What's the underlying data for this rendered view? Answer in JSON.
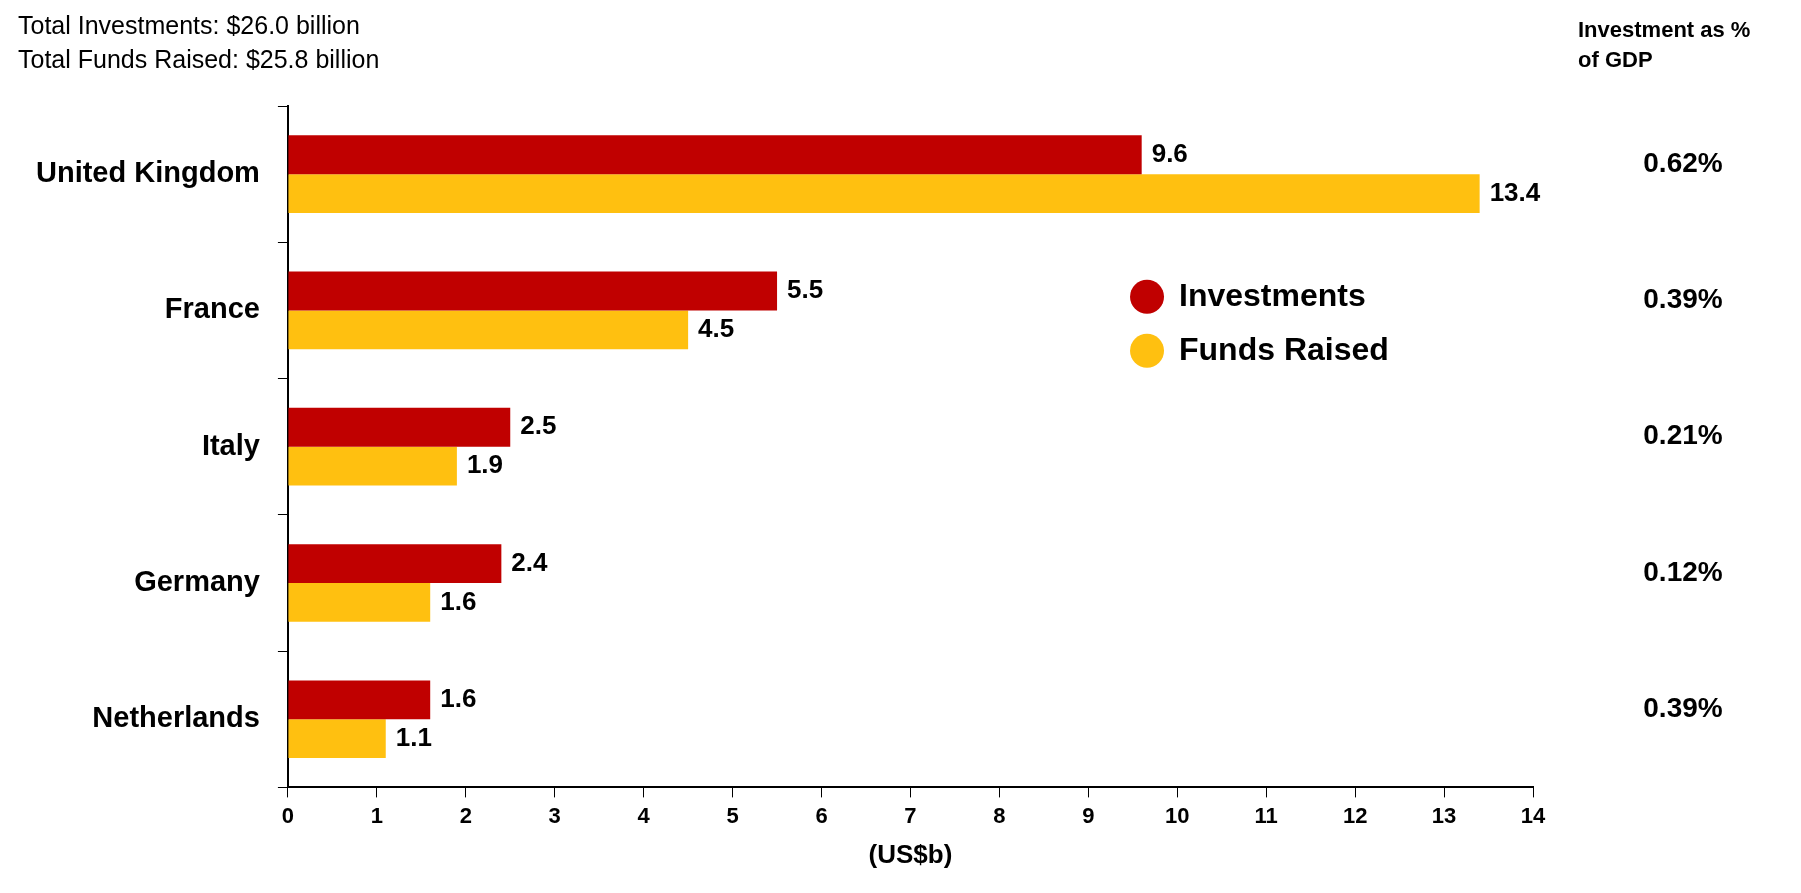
{
  "chart_data": {
    "type": "bar",
    "orientation": "horizontal",
    "title": "Total Investments: $26.0 billion",
    "subtitle": "Total Funds Raised: $25.8 billion",
    "categories": [
      "United Kingdom",
      "France",
      "Italy",
      "Germany",
      "Netherlands"
    ],
    "series": [
      {
        "name": "Investments",
        "color": "#c00000",
        "values": [
          9.6,
          5.5,
          2.5,
          2.4,
          1.6
        ]
      },
      {
        "name": "Funds Raised",
        "color": "#ffc010",
        "values": [
          13.4,
          4.5,
          1.9,
          1.6,
          1.1
        ]
      }
    ],
    "xlabel": "(US$b)",
    "xlim": [
      0,
      14
    ],
    "xticks": [
      0,
      1,
      2,
      3,
      4,
      5,
      6,
      7,
      8,
      9,
      10,
      11,
      12,
      13,
      14
    ],
    "data_labels": true,
    "grid": false,
    "legend": "right",
    "marker": "circle",
    "annotations": [
      "Investment as % of GDP",
      "0.62%",
      "0.39%",
      "0.21%",
      "0.12%",
      "0.39%"
    ]
  }
}
